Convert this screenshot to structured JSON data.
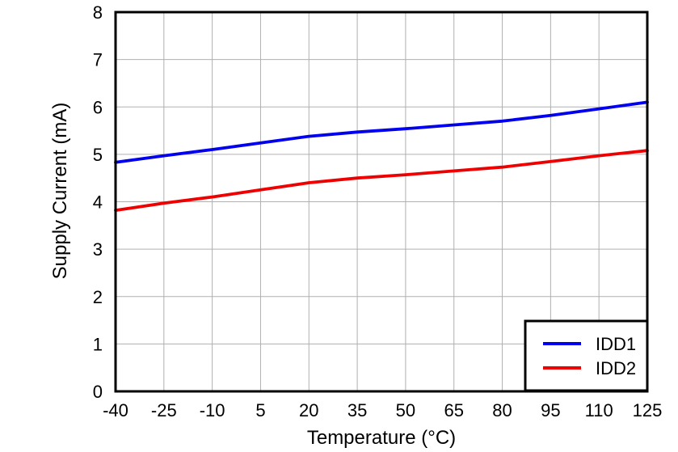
{
  "chart_data": {
    "type": "line",
    "title": "",
    "xlabel": "Temperature (°C)",
    "ylabel": "Supply Current (mA)",
    "x": [
      -40,
      -25,
      -10,
      5,
      20,
      35,
      50,
      65,
      80,
      95,
      110,
      125
    ],
    "series": [
      {
        "name": "IDD1",
        "color": "#0000ee",
        "values": [
          4.83,
          4.97,
          5.1,
          5.24,
          5.38,
          5.47,
          5.54,
          5.62,
          5.7,
          5.82,
          5.96,
          6.1
        ]
      },
      {
        "name": "IDD2",
        "color": "#ee0000",
        "values": [
          3.82,
          3.97,
          4.1,
          4.25,
          4.4,
          4.5,
          4.57,
          4.65,
          4.73,
          4.85,
          4.97,
          5.08
        ]
      }
    ],
    "xlim": [
      -40,
      125
    ],
    "ylim": [
      0,
      8
    ],
    "xticks": [
      -40,
      -25,
      -10,
      5,
      20,
      35,
      50,
      65,
      80,
      95,
      110,
      125
    ],
    "yticks": [
      0,
      1,
      2,
      3,
      4,
      5,
      6,
      7,
      8
    ],
    "grid": true,
    "legend_position": "bottom-right",
    "legend_entries": [
      "IDD1",
      "IDD2"
    ],
    "style": {
      "grid_color": "#b0b0b0",
      "axis_color": "#000000",
      "background_color": "#ffffff",
      "line_width": 3.8,
      "frame_width": 3,
      "legend_border_width": 3
    }
  }
}
